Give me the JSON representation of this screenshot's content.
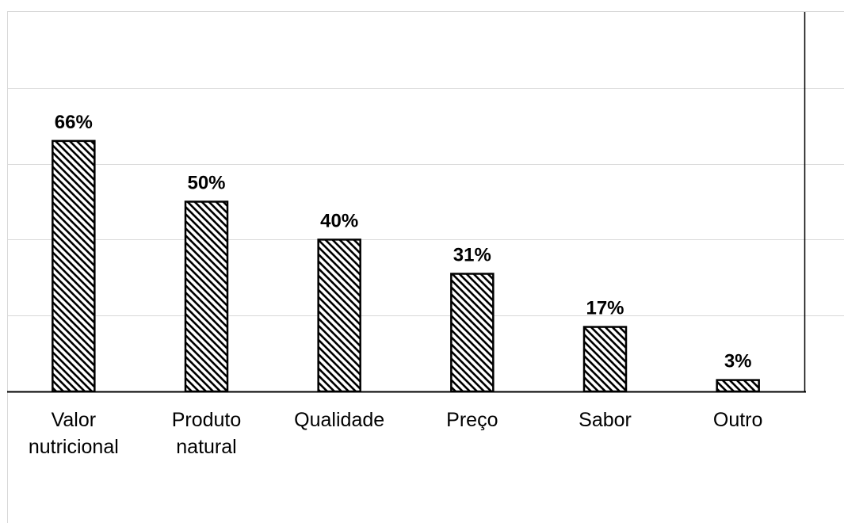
{
  "chart_data": {
    "type": "bar",
    "categories": [
      [
        "Valor",
        "nutricional"
      ],
      [
        "Produto",
        "natural"
      ],
      [
        "Qualidade"
      ],
      [
        "Preço"
      ],
      [
        "Sabor"
      ],
      [
        "Outro"
      ]
    ],
    "values": [
      66,
      50,
      40,
      31,
      17,
      3
    ],
    "data_labels": [
      "66%",
      "50%",
      "40%",
      "31%",
      "17%",
      "3%"
    ],
    "title": "",
    "xlabel": "",
    "ylabel": "",
    "ylim": [
      0,
      100
    ],
    "y_gridline_step": 20,
    "grid": true,
    "legend": "none",
    "bar_pattern": "diagonal-hatch",
    "colors": {
      "bar_stroke": "#000000",
      "hatch": "#000000",
      "bar_fill": "#ffffff",
      "gridline": "#d9d9d9",
      "axis": "#000000",
      "border": "#d9d9d9"
    }
  }
}
